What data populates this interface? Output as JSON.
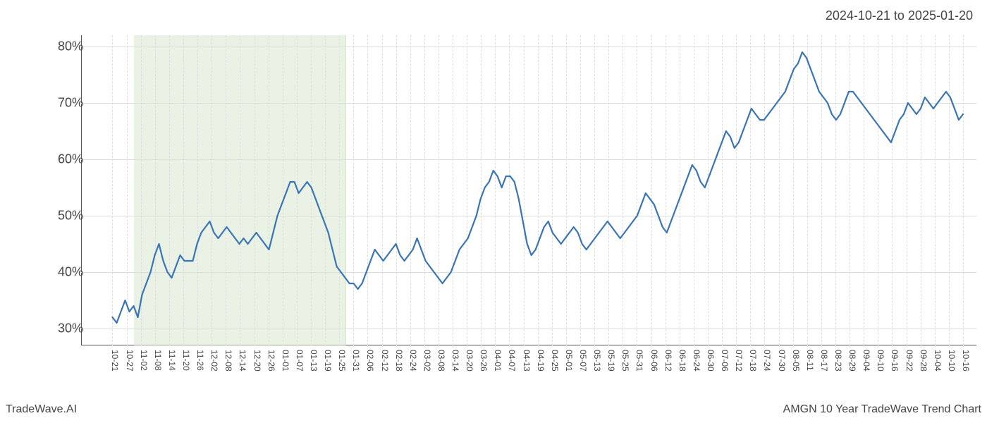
{
  "header": {
    "date_range": "2024-10-21 to 2025-01-20"
  },
  "footer": {
    "left": "TradeWave.AI",
    "right": "AMGN 10 Year TradeWave Trend Chart"
  },
  "chart": {
    "type": "line",
    "background_color": "#ffffff",
    "line_color": "#3a74b4",
    "line_width": 2.2,
    "grid_color": "#dddddd",
    "axis_color": "#555555",
    "highlight": {
      "fill": "#d8e8d0",
      "opacity": 0.55,
      "x_start_index": 2,
      "x_end_index": 16
    },
    "y_axis": {
      "min": 27,
      "max": 82,
      "ticks": [
        30,
        40,
        50,
        60,
        70,
        80
      ],
      "tick_suffix": "%",
      "label_fontsize": 18
    },
    "x_axis": {
      "labels": [
        "10-21",
        "10-27",
        "11-02",
        "11-08",
        "11-14",
        "11-20",
        "11-26",
        "12-02",
        "12-08",
        "12-14",
        "12-20",
        "12-26",
        "01-01",
        "01-07",
        "01-13",
        "01-19",
        "01-25",
        "01-31",
        "02-06",
        "02-12",
        "02-18",
        "02-24",
        "03-02",
        "03-08",
        "03-14",
        "03-20",
        "03-26",
        "04-01",
        "04-07",
        "04-13",
        "04-19",
        "04-25",
        "05-01",
        "05-07",
        "05-13",
        "05-19",
        "05-25",
        "05-31",
        "06-06",
        "06-12",
        "06-18",
        "06-24",
        "06-30",
        "07-06",
        "07-12",
        "07-18",
        "07-24",
        "07-30",
        "08-05",
        "08-11",
        "08-17",
        "08-23",
        "08-29",
        "09-04",
        "09-10",
        "09-16",
        "09-22",
        "09-28",
        "10-04",
        "10-10",
        "10-16"
      ],
      "label_fontsize": 12,
      "rotation": 90
    },
    "series": [
      {
        "name": "trend",
        "values": [
          32,
          31,
          33,
          35,
          33,
          34,
          32,
          36,
          38,
          40,
          43,
          45,
          42,
          40,
          39,
          41,
          43,
          42,
          42,
          42,
          45,
          47,
          48,
          49,
          47,
          46,
          47,
          48,
          47,
          46,
          45,
          46,
          45,
          46,
          47,
          46,
          45,
          44,
          47,
          50,
          52,
          54,
          56,
          56,
          54,
          55,
          56,
          55,
          53,
          51,
          49,
          47,
          44,
          41,
          40,
          39,
          38,
          38,
          37,
          38,
          40,
          42,
          44,
          43,
          42,
          43,
          44,
          45,
          43,
          42,
          43,
          44,
          46,
          44,
          42,
          41,
          40,
          39,
          38,
          39,
          40,
          42,
          44,
          45,
          46,
          48,
          50,
          53,
          55,
          56,
          58,
          57,
          55,
          57,
          57,
          56,
          53,
          49,
          45,
          43,
          44,
          46,
          48,
          49,
          47,
          46,
          45,
          46,
          47,
          48,
          47,
          45,
          44,
          45,
          46,
          47,
          48,
          49,
          48,
          47,
          46,
          47,
          48,
          49,
          50,
          52,
          54,
          53,
          52,
          50,
          48,
          47,
          49,
          51,
          53,
          55,
          57,
          59,
          58,
          56,
          55,
          57,
          59,
          61,
          63,
          65,
          64,
          62,
          63,
          65,
          67,
          69,
          68,
          67,
          67,
          68,
          69,
          70,
          71,
          72,
          74,
          76,
          77,
          79,
          78,
          76,
          74,
          72,
          71,
          70,
          68,
          67,
          68,
          70,
          72,
          72,
          71,
          70,
          69,
          68,
          67,
          66,
          65,
          64,
          63,
          65,
          67,
          68,
          70,
          69,
          68,
          69,
          71,
          70,
          69,
          70,
          71,
          72,
          71,
          69,
          67,
          68
        ]
      }
    ]
  }
}
